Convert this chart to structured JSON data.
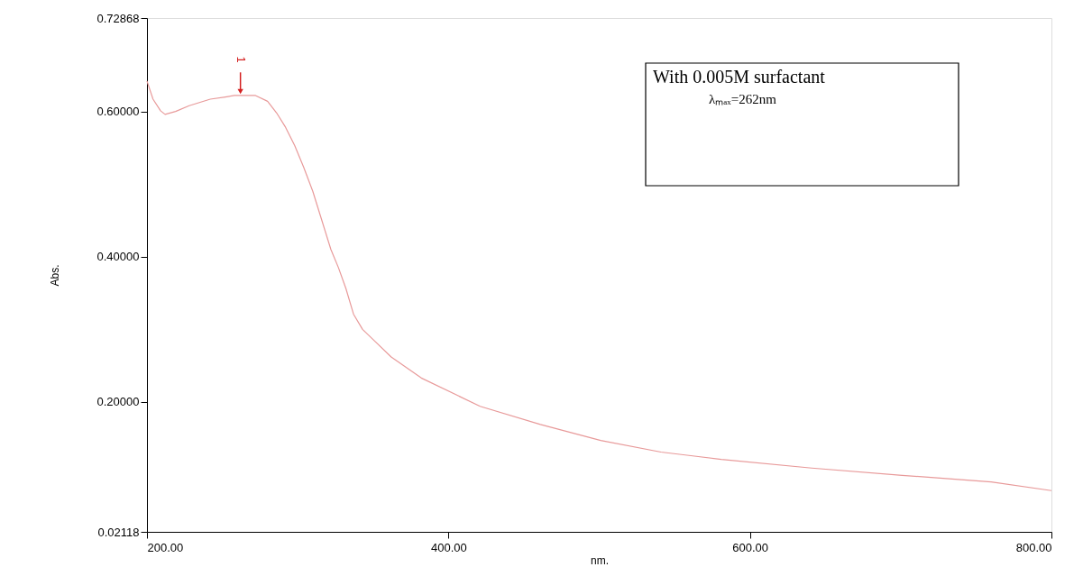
{
  "chart_data": {
    "type": "line",
    "xlabel": "nm.",
    "ylabel": "Abs.",
    "x": [
      200,
      204,
      209,
      212,
      219,
      228,
      242,
      252,
      258,
      265,
      272,
      280,
      286,
      292,
      298,
      304,
      310,
      316,
      322,
      327,
      332,
      337,
      343,
      352,
      362,
      382,
      421,
      461,
      501,
      541,
      581,
      641,
      701,
      760,
      800
    ],
    "series": [
      {
        "color": "#e89a9a",
        "values": [
          0.642,
          0.617,
          0.601,
          0.596,
          0.6,
          0.608,
          0.617,
          0.62,
          0.622,
          0.622,
          0.622,
          0.614,
          0.598,
          0.578,
          0.553,
          0.523,
          0.49,
          0.45,
          0.41,
          0.385,
          0.356,
          0.321,
          0.3,
          0.282,
          0.262,
          0.233,
          0.194,
          0.169,
          0.147,
          0.131,
          0.121,
          0.109,
          0.099,
          0.09,
          0.078
        ]
      }
    ],
    "xlim": [
      200,
      800
    ],
    "ylim": [
      0.02118,
      0.72868
    ],
    "xticks": [
      {
        "value": 200,
        "label": "200.00"
      },
      {
        "value": 400,
        "label": "400.00"
      },
      {
        "value": 600,
        "label": "600.00"
      },
      {
        "value": 800,
        "label": "800.00"
      }
    ],
    "yticks": [
      0.02118,
      {
        "value": 0.2,
        "label": "0.20000"
      },
      {
        "value": 0.4,
        "label": "0.40000"
      },
      {
        "value": 0.6,
        "label": "0.60000"
      },
      0.72868
    ],
    "annotations": [
      {
        "text": "1",
        "x": 262,
        "y": 0.622
      },
      "With 0.005M surfactant",
      "λₘₐₓ=262nm"
    ],
    "grid": false,
    "marker": "none",
    "line_style": "solid"
  }
}
